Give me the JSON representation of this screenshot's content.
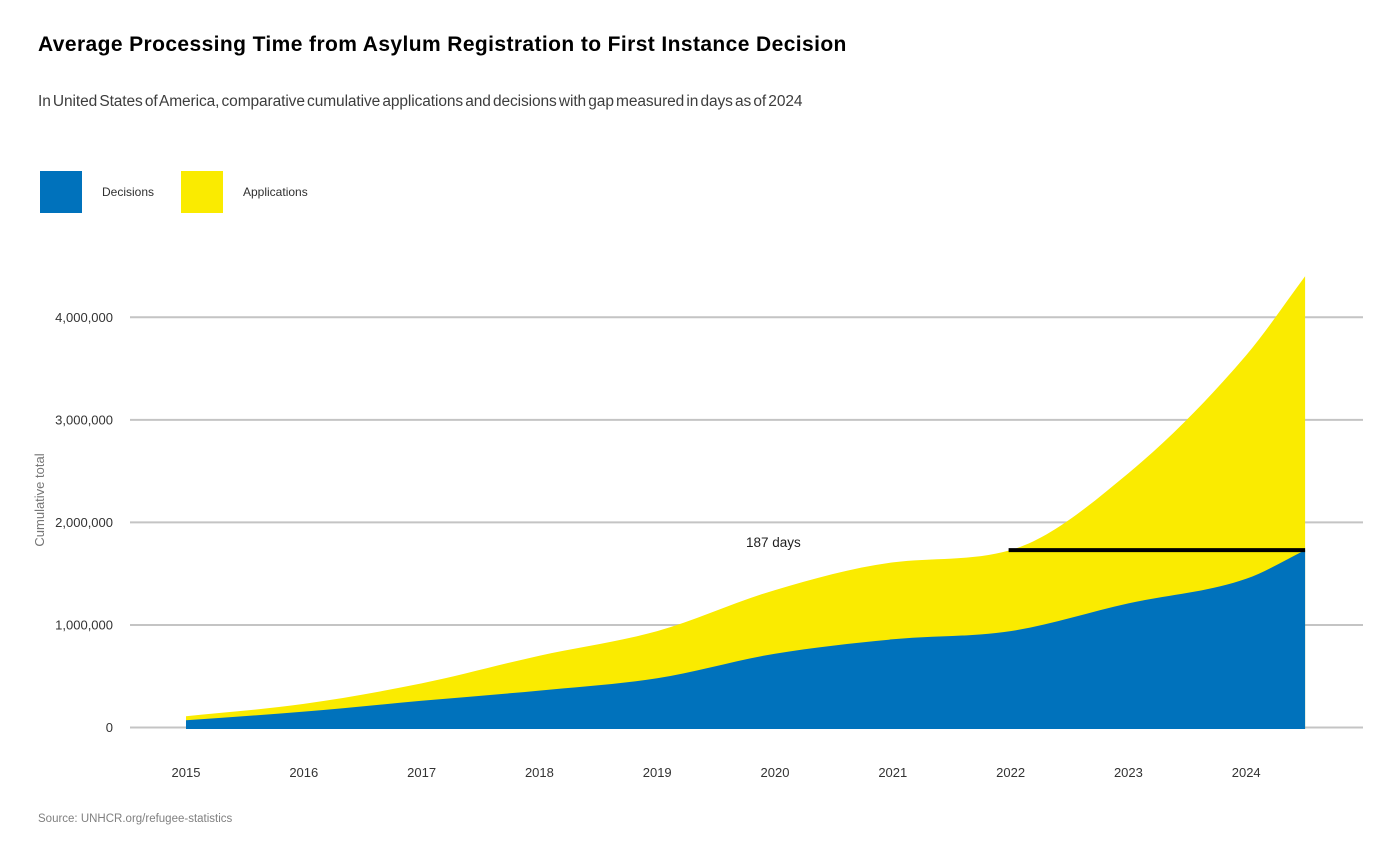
{
  "header": {
    "title": "Average Processing Time from Asylum Registration to First Instance Decision",
    "subtitle": "In United States of America, comparative cumulative applications and decisions with gap measured in days as of 2024"
  },
  "legend": {
    "items": [
      {
        "label": "Decisions",
        "color": "#0072BC"
      },
      {
        "label": "Applications",
        "color": "#FAEB00"
      }
    ]
  },
  "chart_data": {
    "type": "area",
    "title": "Average Processing Time from Asylum Registration to First Instance Decision",
    "xlabel": "",
    "ylabel": "Cumulative total",
    "x": [
      2015,
      2016,
      2017,
      2018,
      2019,
      2020,
      2021,
      2022,
      2023,
      2024,
      2024.5
    ],
    "series": [
      {
        "name": "Applications",
        "color": "#FAEB00",
        "values": [
          110000,
          230000,
          430000,
          700000,
          940000,
          1340000,
          1610000,
          1730000,
          2480000,
          3630000,
          4400000
        ]
      },
      {
        "name": "Decisions",
        "color": "#0072BC",
        "values": [
          70000,
          155000,
          260000,
          360000,
          480000,
          720000,
          860000,
          940000,
          1210000,
          1450000,
          1730000
        ]
      }
    ],
    "ylim": [
      0,
      4400000
    ],
    "yticks": [
      0,
      1000000,
      2000000,
      3000000,
      4000000
    ],
    "ytick_labels": [
      "0",
      "1,000,000",
      "2,000,000",
      "3,000,000",
      "4,000,000"
    ],
    "xticks": [
      2015,
      2016,
      2017,
      2018,
      2019,
      2020,
      2021,
      2022,
      2023,
      2024
    ],
    "grid": true,
    "legend_position": "top-left",
    "annotation": {
      "label": "187 days",
      "value": 1730000,
      "x_from": 2022,
      "x_to": 2024.5,
      "color": "#000000"
    }
  },
  "source": {
    "text": "Source: UNHCR.org/refugee-statistics"
  },
  "colors": {
    "grid": "#c4c4c4",
    "tick_label": "#333333",
    "axis_title": "#767676",
    "annotation_text": "#1f1f1f"
  }
}
